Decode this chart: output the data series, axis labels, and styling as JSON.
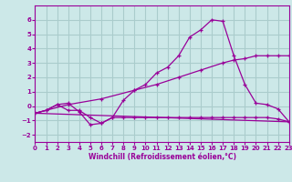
{
  "background_color": "#cce8e8",
  "grid_color": "#aacccc",
  "line_color": "#990099",
  "xlim": [
    0,
    23
  ],
  "ylim": [
    -2.5,
    7.0
  ],
  "yticks": [
    -2,
    -1,
    0,
    1,
    2,
    3,
    4,
    5,
    6
  ],
  "xticks": [
    0,
    1,
    2,
    3,
    4,
    5,
    6,
    7,
    8,
    9,
    10,
    11,
    12,
    13,
    14,
    15,
    16,
    17,
    18,
    19,
    20,
    21,
    22,
    23
  ],
  "xlabel": "Windchill (Refroidissement éolien,°C)",
  "line1_x": [
    0,
    1,
    2,
    3,
    4,
    5,
    6,
    7,
    8,
    9,
    10,
    11,
    12,
    13,
    14,
    15,
    16,
    17,
    18,
    19,
    20,
    21,
    22,
    23
  ],
  "line1_y": [
    -0.5,
    -0.3,
    0.1,
    0.2,
    -0.4,
    -1.3,
    -1.2,
    -0.8,
    0.4,
    1.1,
    1.5,
    2.3,
    2.7,
    3.5,
    4.8,
    5.3,
    6.0,
    5.9,
    3.5,
    1.5,
    0.2,
    0.1,
    -0.2,
    -1.1
  ],
  "line2_x": [
    0,
    1,
    2,
    3,
    4,
    5,
    6,
    7,
    8,
    9,
    10,
    11,
    12,
    13,
    14,
    15,
    16,
    17,
    18,
    19,
    20,
    21,
    22,
    23
  ],
  "line2_y": [
    -0.5,
    -0.3,
    0.1,
    -0.3,
    -0.3,
    -0.8,
    -1.2,
    -0.8,
    -0.8,
    -0.8,
    -0.8,
    -0.8,
    -0.8,
    -0.8,
    -0.8,
    -0.8,
    -0.8,
    -0.8,
    -0.8,
    -0.8,
    -0.8,
    -0.8,
    -0.9,
    -1.1
  ],
  "line3_x": [
    0,
    3,
    6,
    9,
    11,
    13,
    15,
    17,
    18,
    19,
    20,
    21,
    22,
    23
  ],
  "line3_y": [
    -0.5,
    0.1,
    0.5,
    1.1,
    1.5,
    2.0,
    2.5,
    3.0,
    3.2,
    3.3,
    3.5,
    3.5,
    3.5,
    3.5
  ],
  "line4_x": [
    0,
    23
  ],
  "line4_y": [
    -0.5,
    -1.1
  ]
}
